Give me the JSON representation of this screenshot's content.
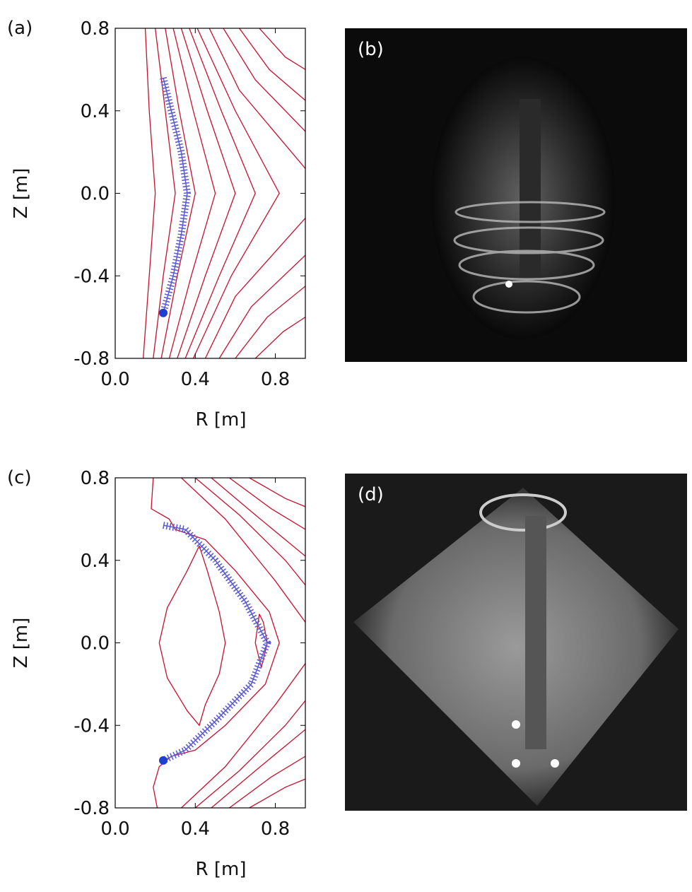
{
  "chart_data": [
    {
      "type": "contour",
      "panel_label": "(a)",
      "xlabel": "R [m]",
      "ylabel": "Z [m]",
      "xlim": [
        0,
        0.95
      ],
      "ylim": [
        -0.8,
        0.8
      ],
      "xticks": [
        {
          "value": 0,
          "label": "0.0"
        },
        0.4,
        0.8
      ],
      "yticks": [
        0.8,
        0.4,
        {
          "value": 0,
          "label": "0.0"
        },
        -0.4,
        -0.8
      ],
      "contour_color": "#c8102e",
      "contours": [
        {
          "x": [
            0.15,
            0.17,
            0.2,
            0.17,
            0.14
          ],
          "y": [
            0.8,
            0.4,
            0,
            -0.4,
            -0.8
          ]
        },
        {
          "x": [
            0.2,
            0.25,
            0.3,
            0.24,
            0.19
          ],
          "y": [
            0.8,
            0.4,
            0,
            -0.4,
            -0.8
          ]
        },
        {
          "x": [
            0.25,
            0.32,
            0.4,
            0.31,
            0.23
          ],
          "y": [
            0.8,
            0.4,
            0,
            -0.4,
            -0.8
          ]
        },
        {
          "x": [
            0.29,
            0.39,
            0.5,
            0.38,
            0.27
          ],
          "y": [
            0.8,
            0.4,
            0,
            -0.4,
            -0.8
          ]
        },
        {
          "x": [
            0.33,
            0.46,
            0.6,
            0.45,
            0.31
          ],
          "y": [
            0.8,
            0.4,
            0,
            -0.4,
            -0.8
          ]
        },
        {
          "x": [
            0.37,
            0.53,
            0.7,
            0.52,
            0.35
          ],
          "y": [
            0.8,
            0.4,
            0,
            -0.4,
            -0.8
          ]
        },
        {
          "x": [
            0.41,
            0.6,
            0.82,
            0.58,
            0.39
          ],
          "y": [
            0.8,
            0.4,
            0,
            -0.4,
            -0.8
          ]
        },
        {
          "x": [
            0.47,
            0.62,
            0.95
          ],
          "y": [
            0.8,
            0.5,
            0.12
          ]
        },
        {
          "x": [
            0.54,
            0.7,
            0.95
          ],
          "y": [
            0.8,
            0.55,
            0.3
          ]
        },
        {
          "x": [
            0.62,
            0.77,
            0.95
          ],
          "y": [
            0.8,
            0.6,
            0.45
          ]
        },
        {
          "x": [
            0.72,
            0.85,
            0.95
          ],
          "y": [
            0.8,
            0.66,
            0.6
          ]
        },
        {
          "x": [
            0.45,
            0.6,
            0.95
          ],
          "y": [
            -0.8,
            -0.5,
            -0.12
          ]
        },
        {
          "x": [
            0.52,
            0.68,
            0.95
          ],
          "y": [
            -0.8,
            -0.55,
            -0.3
          ]
        },
        {
          "x": [
            0.6,
            0.76,
            0.95
          ],
          "y": [
            -0.8,
            -0.6,
            -0.45
          ]
        },
        {
          "x": [
            0.7,
            0.84,
            0.95
          ],
          "y": [
            -0.8,
            -0.67,
            -0.6
          ]
        }
      ],
      "trajectory": {
        "color": "#5b5bd6",
        "x": [
          0.24,
          0.28,
          0.33,
          0.36,
          0.33,
          0.29,
          0.24
        ],
        "y": [
          0.56,
          0.4,
          0.2,
          0,
          -0.2,
          -0.4,
          -0.58
        ]
      },
      "start_point": {
        "color": "#1f3fd0",
        "x": 0.24,
        "y": -0.58
      }
    },
    {
      "type": "contour",
      "panel_label": "(c)",
      "xlabel": "R [m]",
      "ylabel": "Z [m]",
      "xlim": [
        0,
        0.95
      ],
      "ylim": [
        -0.8,
        0.8
      ],
      "xticks": [
        {
          "value": 0,
          "label": "0.0"
        },
        0.4,
        0.8
      ],
      "yticks": [
        0.8,
        0.4,
        {
          "value": 0,
          "label": "0.0"
        },
        -0.4,
        -0.8
      ],
      "contour_color": "#c8102e",
      "contours": [
        {
          "x": [
            0.19,
            0.18,
            0.27,
            0.3,
            0.45,
            0.6,
            0.77,
            0.82,
            0.75,
            0.55,
            0.4,
            0.28,
            0.22,
            0.19,
            0.21
          ],
          "y": [
            0.8,
            0.65,
            0.6,
            0.55,
            0.5,
            0.35,
            0.15,
            0,
            -0.2,
            -0.4,
            -0.52,
            -0.55,
            -0.6,
            -0.7,
            -0.8
          ]
        },
        {
          "x": [
            0.42,
            0.36,
            0.26,
            0.22,
            0.26,
            0.36,
            0.42,
            0.45,
            0.52,
            0.55,
            0.52,
            0.46,
            0.42
          ],
          "y": [
            0.47,
            0.35,
            0.17,
            0,
            -0.17,
            -0.33,
            -0.4,
            -0.3,
            -0.15,
            0,
            0.15,
            0.35,
            0.47
          ]
        },
        {
          "x": [
            0.72,
            0.7,
            0.73,
            0.76,
            0.74,
            0.72
          ],
          "y": [
            0.14,
            0,
            -0.12,
            0,
            0.1,
            0.14
          ]
        },
        {
          "x": [
            0.33,
            0.55,
            0.8,
            0.95
          ],
          "y": [
            0.8,
            0.6,
            0.3,
            0.1
          ]
        },
        {
          "x": [
            0.4,
            0.62,
            0.85,
            0.95
          ],
          "y": [
            0.8,
            0.62,
            0.4,
            0.28
          ]
        },
        {
          "x": [
            0.48,
            0.7,
            0.95
          ],
          "y": [
            0.8,
            0.62,
            0.42
          ]
        },
        {
          "x": [
            0.57,
            0.78,
            0.95
          ],
          "y": [
            0.8,
            0.65,
            0.55
          ]
        },
        {
          "x": [
            0.67,
            0.85,
            0.95
          ],
          "y": [
            0.8,
            0.7,
            0.66
          ]
        },
        {
          "x": [
            0.33,
            0.55,
            0.8,
            0.95
          ],
          "y": [
            -0.8,
            -0.6,
            -0.3,
            -0.1
          ]
        },
        {
          "x": [
            0.4,
            0.62,
            0.85,
            0.95
          ],
          "y": [
            -0.8,
            -0.62,
            -0.4,
            -0.28
          ]
        },
        {
          "x": [
            0.48,
            0.7,
            0.95
          ],
          "y": [
            -0.8,
            -0.62,
            -0.42
          ]
        },
        {
          "x": [
            0.57,
            0.78,
            0.95
          ],
          "y": [
            -0.8,
            -0.65,
            -0.55
          ]
        },
        {
          "x": [
            0.67,
            0.85,
            0.95
          ],
          "y": [
            -0.8,
            -0.7,
            -0.66
          ]
        }
      ],
      "trajectory": {
        "color": "#5b5bd6",
        "x": [
          0.24,
          0.35,
          0.5,
          0.65,
          0.76,
          0.68,
          0.5,
          0.35,
          0.24
        ],
        "y": [
          0.57,
          0.55,
          0.4,
          0.2,
          0,
          -0.2,
          -0.38,
          -0.52,
          -0.57
        ]
      },
      "start_point": {
        "color": "#1f3fd0",
        "x": 0.24,
        "y": -0.57
      }
    }
  ],
  "images": [
    {
      "label": "(b)"
    },
    {
      "label": "(d)"
    }
  ]
}
